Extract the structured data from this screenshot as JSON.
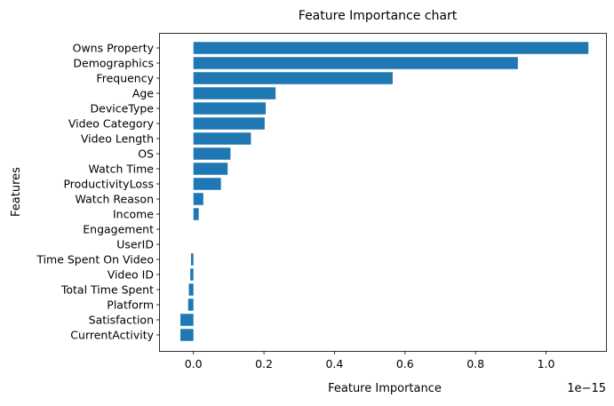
{
  "chart_data": {
    "type": "bar",
    "orientation": "horizontal",
    "title": "Feature Importance chart",
    "xlabel": "Feature Importance",
    "ylabel": "Features",
    "x_scale_label": "1e−15",
    "xlim": [
      -0.095,
      1.17
    ],
    "x_ticks": [
      {
        "value": 0.0,
        "label": "0.0"
      },
      {
        "value": 0.2,
        "label": "0.2"
      },
      {
        "value": 0.4,
        "label": "0.4"
      },
      {
        "value": 0.6,
        "label": "0.6"
      },
      {
        "value": 0.8,
        "label": "0.8"
      },
      {
        "value": 1.0,
        "label": "1.0"
      }
    ],
    "grid": false,
    "bar_color": "#1f77b4",
    "categories": [
      "Owns Property",
      "Demographics",
      "Frequency",
      "Age",
      "DeviceType",
      "Video Category",
      "Video Length",
      "OS",
      "Watch Time",
      "ProductivityLoss",
      "Watch Reason",
      "Income",
      "Engagement",
      "UserID",
      "Time Spent On Video",
      "Video ID",
      "Total Time Spent",
      "Platform",
      "Satisfaction",
      "CurrentActivity"
    ],
    "values": [
      1.12,
      0.92,
      0.565,
      0.233,
      0.205,
      0.202,
      0.163,
      0.105,
      0.097,
      0.078,
      0.028,
      0.015,
      0.0,
      0.0,
      -0.007,
      -0.009,
      -0.013,
      -0.015,
      -0.037,
      -0.037
    ]
  }
}
